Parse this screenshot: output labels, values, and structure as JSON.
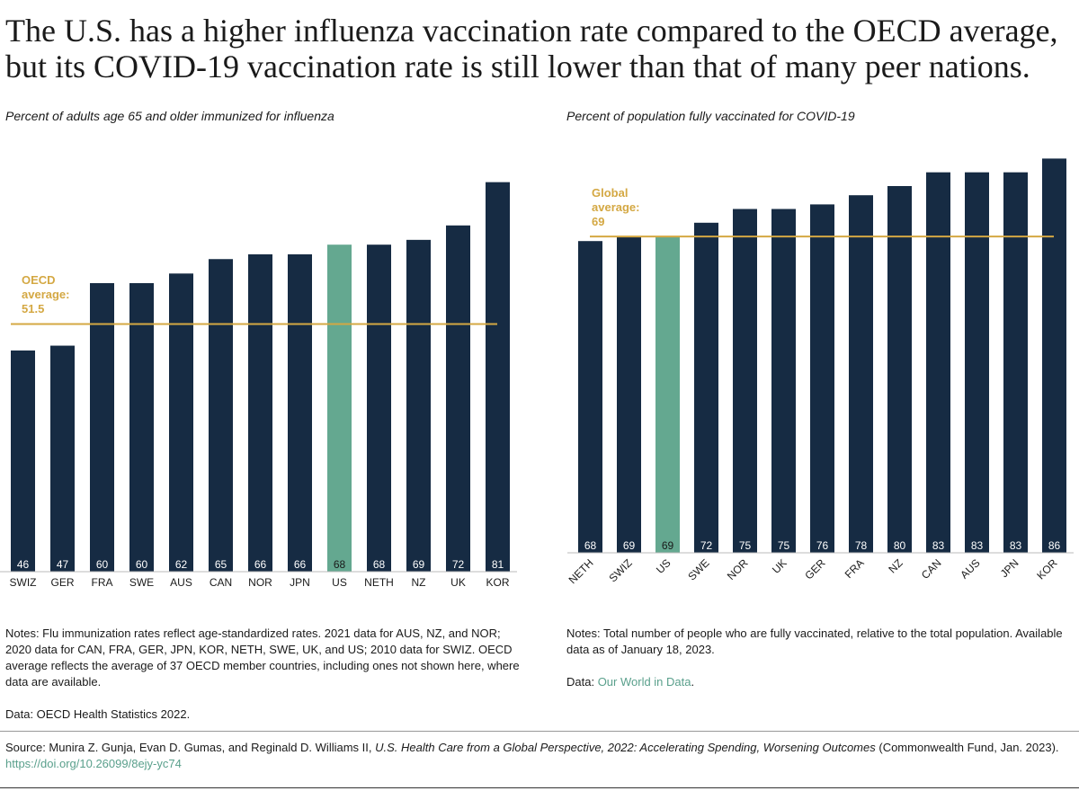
{
  "title": "The U.S. has a higher influenza vaccination rate compared to the OECD average, but its COVID-19 vaccination rate is still lower than that of many peer nations.",
  "colors": {
    "bar": "#162b43",
    "highlight": "#64a890",
    "average": "#d4a843"
  },
  "chart_data": [
    {
      "type": "bar",
      "title": "Percent of adults age 65 and older immunized for influenza",
      "categories": [
        "SWIZ",
        "GER",
        "FRA",
        "SWE",
        "AUS",
        "CAN",
        "NOR",
        "JPN",
        "US",
        "NETH",
        "NZ",
        "UK",
        "KOR"
      ],
      "values": [
        46,
        47,
        60,
        60,
        62,
        65,
        66,
        66,
        68,
        68,
        69,
        72,
        81
      ],
      "highlight": "US",
      "reference_line": {
        "label_lines": [
          "OECD",
          "average:",
          "51.5"
        ],
        "value": 51.5
      }
    },
    {
      "type": "bar",
      "title": "Percent of population fully vaccinated for COVID-19",
      "categories": [
        "NETH",
        "SWIZ",
        "US",
        "SWE",
        "NOR",
        "UK",
        "GER",
        "FRA",
        "NZ",
        "CAN",
        "AUS",
        "JPN",
        "KOR"
      ],
      "values": [
        68,
        69,
        69,
        72,
        75,
        75,
        76,
        78,
        80,
        83,
        83,
        83,
        86
      ],
      "highlight": "US",
      "reference_line": {
        "label_lines": [
          "Global",
          "average:",
          "69"
        ],
        "value": 69
      }
    }
  ],
  "notes_left": "Notes: Flu immunization rates reflect age-standardized rates. 2021 data for AUS, NZ, and NOR; 2020 data for CAN, FRA, GER, JPN, KOR, NETH, SWE, UK, and US; 2010 data for SWIZ. OECD average reflects the average of 37 OECD member countries, including ones not shown here, where data are available.",
  "data_left": "Data: OECD Health Statistics 2022.",
  "notes_right": "Notes: Total number of people who are fully vaccinated, relative to the total population. Available data as of January 18, 2023.",
  "data_right_prefix": "Data: ",
  "data_right_link": "Our World in Data",
  "data_right_suffix": ".",
  "source_prefix": "Source: Munira Z. Gunja, Evan D. Gumas, and Reginald D. Williams II, ",
  "source_italic": "U.S. Health Care from a Global Perspective, 2022: Accelerating Spending, Worsening Outcomes",
  "source_suffix": " (Commonwealth Fund, Jan. 2023). ",
  "source_link": "https://doi.org/10.26099/8ejy-yc74"
}
